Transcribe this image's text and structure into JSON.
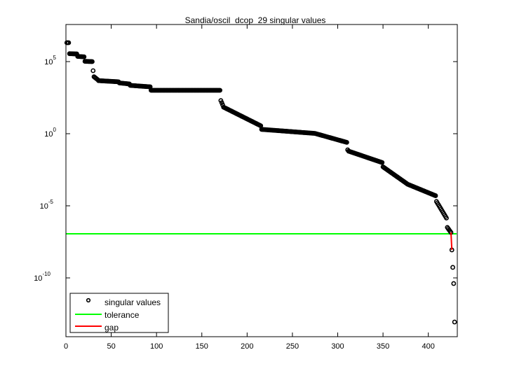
{
  "chart_data": {
    "type": "scatter",
    "title": "Sandia/oscil_dcop_29 singular values",
    "xlabel": "",
    "ylabel": "",
    "yscale": "log",
    "xlim": [
      0,
      432
    ],
    "ylim_log10": [
      -14.1,
      7.5
    ],
    "x_ticks": [
      0,
      50,
      100,
      150,
      200,
      250,
      300,
      350,
      400
    ],
    "y_ticks": [
      {
        "exp": "5",
        "value": 100000
      },
      {
        "exp": "0",
        "value": 1
      },
      {
        "exp": "-5",
        "value": 1e-05
      },
      {
        "exp": "-10",
        "value": 1e-10
      }
    ],
    "legend": {
      "position": "lower left",
      "entries": [
        {
          "label": "singular values",
          "marker": "circle",
          "color": "#000000"
        },
        {
          "label": "tolerance",
          "line": true,
          "color": "#00ff00"
        },
        {
          "label": "gap",
          "line": true,
          "color": "#ff0000"
        }
      ]
    },
    "series": [
      {
        "name": "singular values",
        "description": "index ranges with log10(sigma) linearly interpolated from start to end",
        "segments": [
          {
            "from": 1,
            "to": 3,
            "log10_start": 6.31,
            "log10_end": 6.31
          },
          {
            "from": 4,
            "to": 12,
            "log10_start": 5.55,
            "log10_end": 5.53
          },
          {
            "from": 13,
            "to": 20,
            "log10_start": 5.36,
            "log10_end": 5.33
          },
          {
            "from": 21,
            "to": 29,
            "log10_start": 5.02,
            "log10_end": 5.0
          },
          {
            "from": 30,
            "to": 30,
            "log10_start": 4.37,
            "log10_end": 4.37
          },
          {
            "from": 31,
            "to": 35,
            "log10_start": 3.95,
            "log10_end": 3.75
          },
          {
            "from": 36,
            "to": 58,
            "log10_start": 3.68,
            "log10_end": 3.6
          },
          {
            "from": 59,
            "to": 70,
            "log10_start": 3.52,
            "log10_end": 3.45
          },
          {
            "from": 71,
            "to": 93,
            "log10_start": 3.35,
            "log10_end": 3.25
          },
          {
            "from": 94,
            "to": 170,
            "log10_start": 3.01,
            "log10_end": 3.01
          },
          {
            "from": 171,
            "to": 173,
            "log10_start": 2.3,
            "log10_end": 2.0
          },
          {
            "from": 174,
            "to": 215,
            "log10_start": 1.84,
            "log10_end": 0.55
          },
          {
            "from": 216,
            "to": 275,
            "log10_start": 0.3,
            "log10_end": 0.02
          },
          {
            "from": 276,
            "to": 310,
            "log10_start": 0.0,
            "log10_end": -0.6
          },
          {
            "from": 311,
            "to": 311,
            "log10_start": -1.12,
            "log10_end": -1.12
          },
          {
            "from": 312,
            "to": 349,
            "log10_start": -1.21,
            "log10_end": -2.0
          },
          {
            "from": 350,
            "to": 376,
            "log10_start": -2.3,
            "log10_end": -3.45
          },
          {
            "from": 377,
            "to": 408,
            "log10_start": -3.5,
            "log10_end": -4.3
          },
          {
            "from": 409,
            "to": 420,
            "log10_start": -4.7,
            "log10_end": -5.85
          },
          {
            "from": 421,
            "to": 425,
            "log10_start": -6.5,
            "log10_end": -6.85
          },
          {
            "from": 426,
            "to": 426,
            "log10_start": -8.06,
            "log10_end": -8.06
          },
          {
            "from": 427,
            "to": 427,
            "log10_start": -9.27,
            "log10_end": -9.27
          },
          {
            "from": 428,
            "to": 428,
            "log10_start": -10.39,
            "log10_end": -10.39
          },
          {
            "from": 429,
            "to": 429,
            "log10_start": -13.06,
            "log10_end": -13.06
          }
        ]
      },
      {
        "name": "tolerance",
        "type": "hline",
        "log10_value": -6.94,
        "value": 1.15e-07,
        "x_range": [
          0,
          432
        ]
      },
      {
        "name": "gap",
        "type": "segment",
        "points": [
          {
            "x": 425,
            "log10": -6.85
          },
          {
            "x": 426,
            "log10": -8.06
          }
        ]
      }
    ]
  }
}
